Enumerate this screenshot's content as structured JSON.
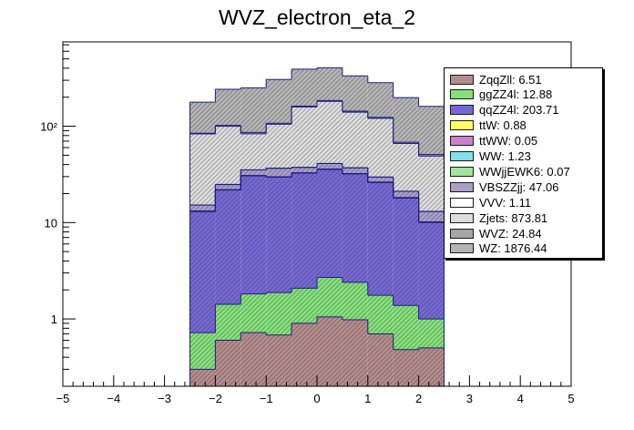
{
  "chart_data": {
    "type": "bar",
    "title": "WVZ_electron_eta_2",
    "xlabel": "",
    "ylabel": "",
    "xlim": [
      -5,
      5
    ],
    "ylim": [
      0.2,
      750
    ],
    "yscale": "log",
    "stacked": true,
    "grid": false,
    "legend_position": "top-right",
    "x_ticks": [
      "−5",
      "−4",
      "−3",
      "−2",
      "−1",
      "0",
      "1",
      "2",
      "3",
      "4",
      "5"
    ],
    "y_ticks": [
      {
        "value": 1,
        "label": "1"
      },
      {
        "value": 10,
        "label": "10"
      },
      {
        "value": 100,
        "label": "10²"
      }
    ],
    "bins": [
      -2.5,
      -2.0,
      -1.5,
      -1.0,
      -0.5,
      0.0,
      0.5,
      1.0,
      1.5,
      2.0,
      2.5
    ],
    "series": [
      {
        "name": "ZqqZll: 6.51",
        "color": "#b58c8c",
        "values": [
          0.3,
          0.6,
          0.72,
          0.68,
          0.9,
          1.05,
          0.98,
          0.7,
          0.48,
          0.5,
          0.42
        ]
      },
      {
        "name": "ggZZ4l: 12.88",
        "color": "#84e07a",
        "values": [
          0.42,
          0.82,
          1.1,
          1.2,
          1.18,
          1.65,
          1.42,
          1.06,
          0.9,
          0.5,
          0.0
        ]
      },
      {
        "name": "qqZZ4l: 203.71",
        "color": "#7668d6",
        "values": [
          12.3,
          20.3,
          28.7,
          27.8,
          30.5,
          33.0,
          29.6,
          24.3,
          16.6,
          9.0,
          0.0
        ]
      },
      {
        "name": "ttW: 0.88",
        "color": "#ffff66",
        "values": [
          0.06,
          0.08,
          0.09,
          0.1,
          0.1,
          0.1,
          0.1,
          0.09,
          0.08,
          0.08,
          0.0
        ]
      },
      {
        "name": "ttWW: 0.05",
        "color": "#cc80cc",
        "values": [
          0.004,
          0.005,
          0.005,
          0.005,
          0.006,
          0.005,
          0.005,
          0.005,
          0.005,
          0.005,
          0.0
        ]
      },
      {
        "name": "WW: 1.23",
        "color": "#7ee0e8",
        "values": [
          0.08,
          0.1,
          0.12,
          0.13,
          0.14,
          0.14,
          0.13,
          0.13,
          0.12,
          0.1,
          0.0
        ]
      },
      {
        "name": "WWjjEWK6: 0.07",
        "color": "#9fe69f",
        "values": [
          0.005,
          0.006,
          0.007,
          0.007,
          0.008,
          0.008,
          0.007,
          0.007,
          0.006,
          0.006,
          0.0
        ]
      },
      {
        "name": "VBSZZjj: 47.06",
        "color": "#a8a0c8",
        "values": [
          2.0,
          2.9,
          4.5,
          6.7,
          4.5,
          5.0,
          4.7,
          3.3,
          2.9,
          2.8,
          0.0
        ]
      },
      {
        "name": "VVV: 1.11",
        "color": "#ffffff",
        "values": [
          0.07,
          0.09,
          0.1,
          0.12,
          0.12,
          0.13,
          0.12,
          0.11,
          0.1,
          0.1,
          0.0
        ]
      },
      {
        "name": "Zjets: 873.81",
        "color": "#dcdcdc",
        "values": [
          68,
          75,
          48,
          68,
          121,
          140,
          103,
          91,
          45,
          36,
          0.0
        ]
      },
      {
        "name": "WVZ: 24.84",
        "color": "#a6a6a6",
        "values": [
          1.4,
          2.1,
          2.8,
          2.8,
          3.2,
          3.5,
          3.2,
          2.6,
          2.1,
          1.7,
          0.0
        ]
      },
      {
        "name": "WZ: 1876.44",
        "color": "#b4b4b4",
        "values": [
          93,
          140,
          164,
          198,
          230,
          220,
          190,
          160,
          130,
          110,
          0.0
        ]
      }
    ]
  }
}
